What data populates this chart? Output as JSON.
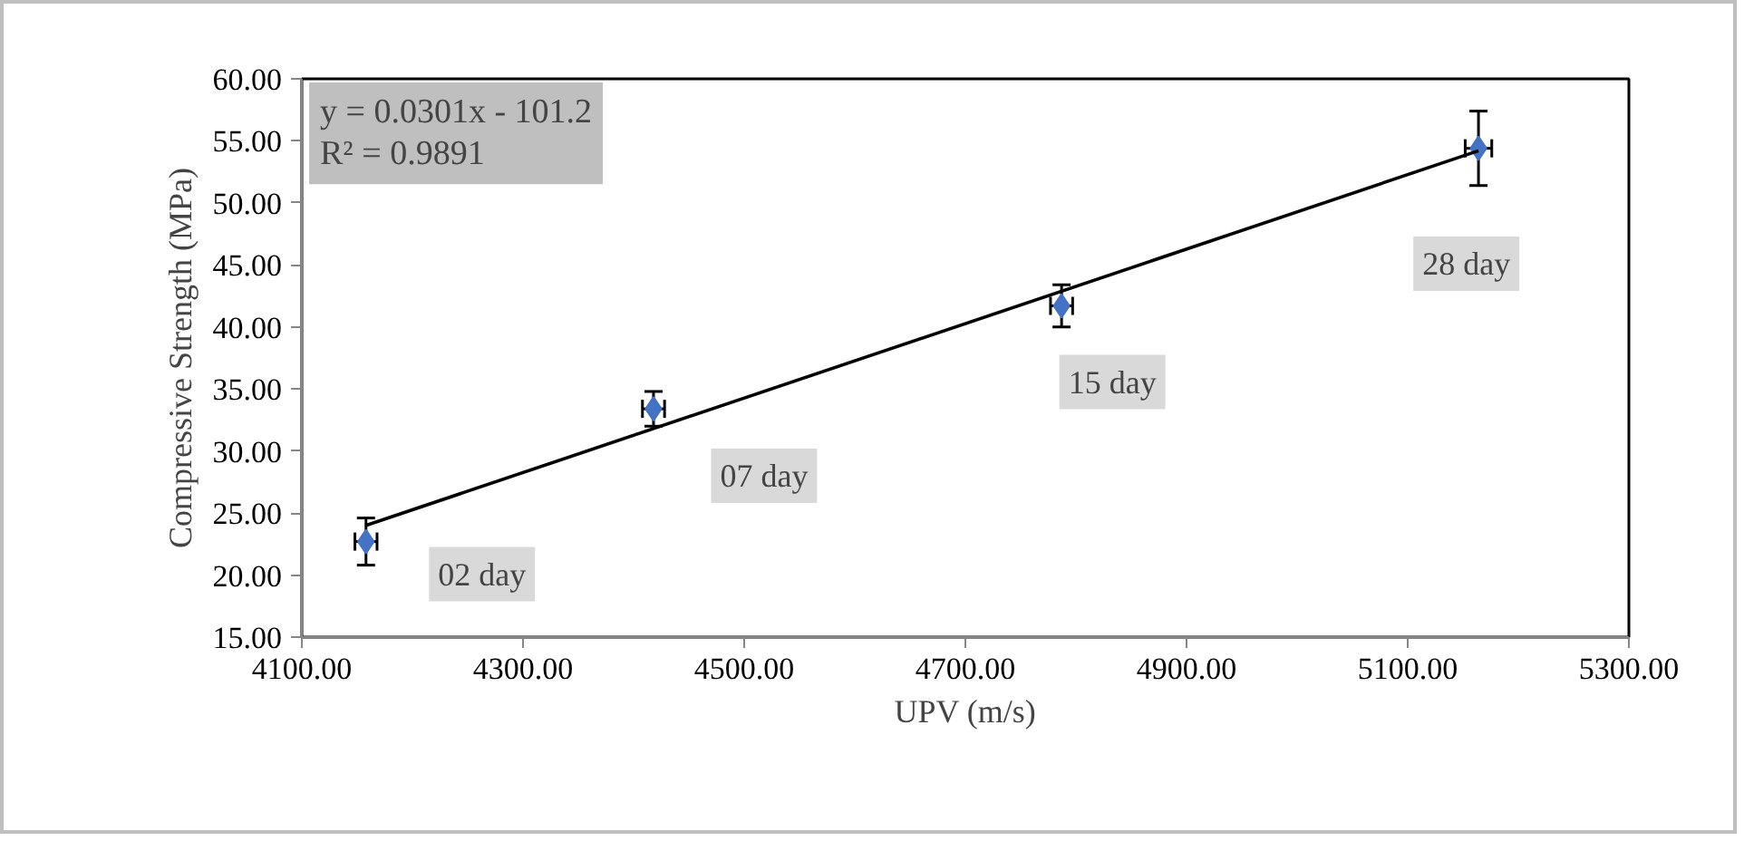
{
  "chart_data": {
    "type": "scatter",
    "xlabel": "UPV (m/s)",
    "ylabel": "Compressive Strength (MPa)",
    "xlim": [
      4100,
      5300
    ],
    "xticks": [
      {
        "value": 4100,
        "label": "4100.00"
      },
      {
        "value": 4300,
        "label": "4300.00"
      },
      {
        "value": 4500,
        "label": "4500.00"
      },
      {
        "value": 4700,
        "label": "4700.00"
      },
      {
        "value": 4900,
        "label": "4900.00"
      },
      {
        "value": 5100,
        "label": "5100.00"
      },
      {
        "value": 5300,
        "label": "5300.00"
      }
    ],
    "ylim": [
      15,
      60
    ],
    "yticks": [
      {
        "value": 15,
        "label": "15.00"
      },
      {
        "value": 20,
        "label": "20.00"
      },
      {
        "value": 25,
        "label": "25.00"
      },
      {
        "value": 30,
        "label": "30.00"
      },
      {
        "value": 35,
        "label": "35.00"
      },
      {
        "value": 40,
        "label": "40.00"
      },
      {
        "value": 45,
        "label": "45.00"
      },
      {
        "value": 50,
        "label": "50.00"
      },
      {
        "value": 55,
        "label": "55.00"
      },
      {
        "value": 60,
        "label": "60.00"
      }
    ],
    "grid": false,
    "marker": "diamond",
    "series": [
      {
        "color": "#4472c4",
        "x": [
          4158,
          4418,
          4787,
          5164
        ],
        "values": [
          22.7,
          33.4,
          41.7,
          54.4
        ],
        "errors": [
          1.9,
          1.4,
          1.7,
          3.0
        ],
        "xerrors": [
          10,
          10,
          10,
          12
        ]
      },
      {
        "type": "line",
        "color": "#000000",
        "x": [
          4158,
          5164
        ],
        "values": [
          24.0,
          54.2
        ],
        "marker": "none",
        "line_style": "solid"
      }
    ],
    "annotations": [
      "y = 0.0301x - 101.2\nR² = 0.9891",
      {
        "text": "02 day",
        "x": 4158,
        "y": 22.7
      },
      {
        "text": "07 day",
        "x": 4418,
        "y": 33.4
      },
      {
        "text": "15 day",
        "x": 4787,
        "y": 41.7
      },
      "28 day"
    ]
  }
}
